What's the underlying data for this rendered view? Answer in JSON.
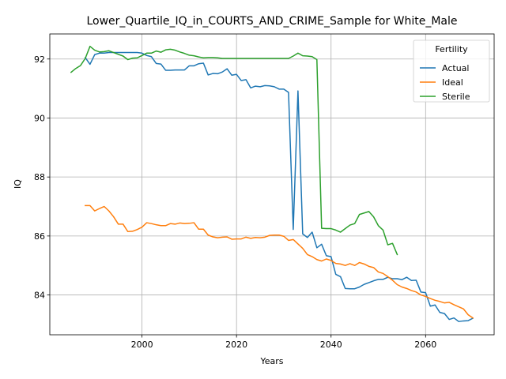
{
  "chart_data": {
    "type": "line",
    "title": "Lower_Quartile_IQ_in_COURTS_AND_CRIME_Sample for White_Male",
    "xlabel": "Years",
    "ylabel": "IQ",
    "xlim": [
      1980.5,
      2074.5
    ],
    "ylim": [
      82.65,
      92.85
    ],
    "xticks": [
      2000,
      2020,
      2040,
      2060
    ],
    "yticks": [
      84,
      86,
      88,
      90,
      92
    ],
    "grid": true,
    "legend": {
      "title": "Fertility",
      "placement": "top-right"
    },
    "series": [
      {
        "name": "Actual",
        "color": "#1f77b4",
        "points": [
          [
            1988,
            92.05
          ],
          [
            1989,
            91.82
          ],
          [
            1990,
            92.15
          ],
          [
            1991,
            92.2
          ],
          [
            1992,
            92.2
          ],
          [
            1993,
            92.22
          ],
          [
            1994,
            92.22
          ],
          [
            1995,
            92.22
          ],
          [
            1996,
            92.22
          ],
          [
            1997,
            92.22
          ],
          [
            1998,
            92.22
          ],
          [
            1999,
            92.22
          ],
          [
            2000,
            92.2
          ],
          [
            2001,
            92.12
          ],
          [
            2002,
            92.08
          ],
          [
            2003,
            91.85
          ],
          [
            2004,
            91.83
          ],
          [
            2005,
            91.62
          ],
          [
            2006,
            91.62
          ],
          [
            2007,
            91.63
          ],
          [
            2008,
            91.63
          ],
          [
            2009,
            91.63
          ],
          [
            2010,
            91.77
          ],
          [
            2011,
            91.77
          ],
          [
            2012,
            91.84
          ],
          [
            2013,
            91.86
          ],
          [
            2014,
            91.46
          ],
          [
            2015,
            91.51
          ],
          [
            2016,
            91.5
          ],
          [
            2017,
            91.56
          ],
          [
            2018,
            91.67
          ],
          [
            2019,
            91.45
          ],
          [
            2020,
            91.48
          ],
          [
            2021,
            91.27
          ],
          [
            2022,
            91.3
          ],
          [
            2023,
            91.02
          ],
          [
            2024,
            91.08
          ],
          [
            2025,
            91.06
          ],
          [
            2026,
            91.1
          ],
          [
            2027,
            91.09
          ],
          [
            2028,
            91.06
          ],
          [
            2029,
            90.98
          ],
          [
            2030,
            90.98
          ],
          [
            2031,
            90.87
          ],
          [
            2032,
            86.22
          ],
          [
            2033,
            90.92
          ],
          [
            2034,
            86.07
          ],
          [
            2035,
            85.95
          ],
          [
            2036,
            86.13
          ],
          [
            2037,
            85.6
          ],
          [
            2038,
            85.72
          ],
          [
            2039,
            85.33
          ],
          [
            2040,
            85.3
          ],
          [
            2041,
            84.7
          ],
          [
            2042,
            84.62
          ],
          [
            2043,
            84.22
          ],
          [
            2044,
            84.21
          ],
          [
            2045,
            84.21
          ],
          [
            2046,
            84.27
          ],
          [
            2047,
            84.36
          ],
          [
            2048,
            84.42
          ],
          [
            2049,
            84.48
          ],
          [
            2050,
            84.53
          ],
          [
            2051,
            84.53
          ],
          [
            2052,
            84.6
          ],
          [
            2053,
            84.55
          ],
          [
            2054,
            84.55
          ],
          [
            2055,
            84.52
          ],
          [
            2056,
            84.6
          ],
          [
            2057,
            84.49
          ],
          [
            2058,
            84.5
          ],
          [
            2059,
            84.1
          ],
          [
            2060,
            84.08
          ],
          [
            2061,
            83.62
          ],
          [
            2062,
            83.66
          ],
          [
            2063,
            83.41
          ],
          [
            2064,
            83.37
          ],
          [
            2065,
            83.17
          ],
          [
            2066,
            83.22
          ],
          [
            2067,
            83.1
          ],
          [
            2068,
            83.12
          ],
          [
            2069,
            83.13
          ],
          [
            2070,
            83.21
          ]
        ]
      },
      {
        "name": "Ideal",
        "color": "#ff7f0e",
        "points": [
          [
            1988,
            87.03
          ],
          [
            1989,
            87.03
          ],
          [
            1990,
            86.85
          ],
          [
            1991,
            86.93
          ],
          [
            1992,
            87.0
          ],
          [
            1993,
            86.85
          ],
          [
            1994,
            86.65
          ],
          [
            1995,
            86.4
          ],
          [
            1996,
            86.4
          ],
          [
            1997,
            86.15
          ],
          [
            1998,
            86.16
          ],
          [
            1999,
            86.22
          ],
          [
            2000,
            86.3
          ],
          [
            2001,
            86.45
          ],
          [
            2002,
            86.42
          ],
          [
            2003,
            86.38
          ],
          [
            2004,
            86.35
          ],
          [
            2005,
            86.35
          ],
          [
            2006,
            86.42
          ],
          [
            2007,
            86.4
          ],
          [
            2008,
            86.44
          ],
          [
            2009,
            86.42
          ],
          [
            2010,
            86.43
          ],
          [
            2011,
            86.45
          ],
          [
            2012,
            86.23
          ],
          [
            2013,
            86.23
          ],
          [
            2014,
            86.03
          ],
          [
            2015,
            85.97
          ],
          [
            2016,
            85.94
          ],
          [
            2017,
            85.96
          ],
          [
            2018,
            85.97
          ],
          [
            2019,
            85.89
          ],
          [
            2020,
            85.9
          ],
          [
            2021,
            85.9
          ],
          [
            2022,
            85.96
          ],
          [
            2023,
            85.92
          ],
          [
            2024,
            85.95
          ],
          [
            2025,
            85.94
          ],
          [
            2026,
            85.96
          ],
          [
            2027,
            86.02
          ],
          [
            2028,
            86.03
          ],
          [
            2029,
            86.03
          ],
          [
            2030,
            85.99
          ],
          [
            2031,
            85.85
          ],
          [
            2032,
            85.88
          ],
          [
            2033,
            85.73
          ],
          [
            2034,
            85.58
          ],
          [
            2035,
            85.37
          ],
          [
            2036,
            85.3
          ],
          [
            2037,
            85.2
          ],
          [
            2038,
            85.15
          ],
          [
            2039,
            85.22
          ],
          [
            2040,
            85.17
          ],
          [
            2041,
            85.07
          ],
          [
            2042,
            85.05
          ],
          [
            2043,
            85.0
          ],
          [
            2044,
            85.06
          ],
          [
            2045,
            85.0
          ],
          [
            2046,
            85.1
          ],
          [
            2047,
            85.05
          ],
          [
            2048,
            84.97
          ],
          [
            2049,
            84.93
          ],
          [
            2050,
            84.78
          ],
          [
            2051,
            84.73
          ],
          [
            2052,
            84.62
          ],
          [
            2053,
            84.5
          ],
          [
            2054,
            84.35
          ],
          [
            2055,
            84.27
          ],
          [
            2056,
            84.22
          ],
          [
            2057,
            84.15
          ],
          [
            2058,
            84.1
          ],
          [
            2059,
            84.0
          ],
          [
            2060,
            83.95
          ],
          [
            2061,
            83.88
          ],
          [
            2062,
            83.82
          ],
          [
            2063,
            83.78
          ],
          [
            2064,
            83.73
          ],
          [
            2065,
            83.75
          ],
          [
            2066,
            83.67
          ],
          [
            2067,
            83.6
          ],
          [
            2068,
            83.53
          ],
          [
            2069,
            83.33
          ],
          [
            2070,
            83.22
          ]
        ]
      },
      {
        "name": "Sterile",
        "color": "#2ca02c",
        "points": [
          [
            1985,
            91.55
          ],
          [
            1986,
            91.68
          ],
          [
            1987,
            91.78
          ],
          [
            1988,
            92.02
          ],
          [
            1989,
            92.43
          ],
          [
            1990,
            92.3
          ],
          [
            1991,
            92.24
          ],
          [
            1992,
            92.25
          ],
          [
            1993,
            92.28
          ],
          [
            1994,
            92.22
          ],
          [
            1995,
            92.16
          ],
          [
            1996,
            92.1
          ],
          [
            1997,
            91.98
          ],
          [
            1998,
            92.03
          ],
          [
            1999,
            92.04
          ],
          [
            2000,
            92.12
          ],
          [
            2001,
            92.2
          ],
          [
            2002,
            92.2
          ],
          [
            2003,
            92.27
          ],
          [
            2004,
            92.23
          ],
          [
            2005,
            92.31
          ],
          [
            2006,
            92.33
          ],
          [
            2007,
            92.3
          ],
          [
            2008,
            92.24
          ],
          [
            2009,
            92.19
          ],
          [
            2010,
            92.13
          ],
          [
            2011,
            92.11
          ],
          [
            2012,
            92.07
          ],
          [
            2013,
            92.04
          ],
          [
            2014,
            92.05
          ],
          [
            2015,
            92.05
          ],
          [
            2016,
            92.04
          ],
          [
            2017,
            92.02
          ],
          [
            2018,
            92.02
          ],
          [
            2019,
            92.02
          ],
          [
            2020,
            92.02
          ],
          [
            2021,
            92.02
          ],
          [
            2022,
            92.02
          ],
          [
            2023,
            92.02
          ],
          [
            2024,
            92.02
          ],
          [
            2025,
            92.02
          ],
          [
            2026,
            92.02
          ],
          [
            2027,
            92.02
          ],
          [
            2028,
            92.02
          ],
          [
            2029,
            92.02
          ],
          [
            2030,
            92.02
          ],
          [
            2031,
            92.02
          ],
          [
            2032,
            92.1
          ],
          [
            2033,
            92.2
          ],
          [
            2034,
            92.11
          ],
          [
            2035,
            92.1
          ],
          [
            2036,
            92.08
          ],
          [
            2037,
            91.98
          ],
          [
            2038,
            86.26
          ],
          [
            2039,
            86.25
          ],
          [
            2040,
            86.25
          ],
          [
            2041,
            86.2
          ],
          [
            2042,
            86.13
          ],
          [
            2043,
            86.25
          ],
          [
            2044,
            86.37
          ],
          [
            2045,
            86.42
          ],
          [
            2046,
            86.73
          ],
          [
            2047,
            86.78
          ],
          [
            2048,
            86.83
          ],
          [
            2049,
            86.65
          ],
          [
            2050,
            86.35
          ],
          [
            2051,
            86.2
          ],
          [
            2052,
            85.7
          ],
          [
            2053,
            85.75
          ],
          [
            2054,
            85.37
          ]
        ]
      }
    ]
  }
}
